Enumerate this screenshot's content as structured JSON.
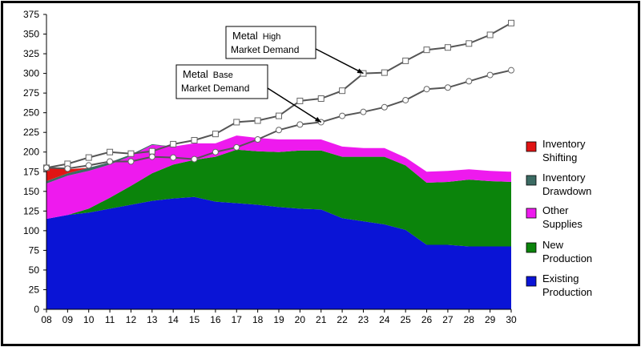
{
  "chart_data": {
    "type": "area",
    "x": [
      "08",
      "09",
      "10",
      "11",
      "12",
      "13",
      "14",
      "15",
      "16",
      "17",
      "18",
      "19",
      "20",
      "21",
      "22",
      "23",
      "24",
      "25",
      "26",
      "27",
      "28",
      "29",
      "30"
    ],
    "ylim": [
      0,
      375
    ],
    "yticks": [
      0,
      25,
      50,
      75,
      100,
      125,
      150,
      175,
      200,
      225,
      250,
      275,
      300,
      325,
      350,
      375
    ],
    "grid": false,
    "legend_position": "right",
    "stacked_series": [
      {
        "name": "Existing Production",
        "label_lines": [
          "Existing",
          "Production"
        ],
        "color": "#0a14d6",
        "values": [
          115,
          120,
          123,
          128,
          133,
          138,
          141,
          143,
          137,
          135,
          133,
          130,
          128,
          127,
          116,
          112,
          108,
          101,
          82,
          82,
          80,
          80,
          80
        ]
      },
      {
        "name": "New Production",
        "label_lines": [
          "New",
          "Production"
        ],
        "color": "#0b840b",
        "values": [
          0,
          0,
          5,
          14,
          24,
          35,
          43,
          47,
          57,
          68,
          68,
          70,
          74,
          75,
          78,
          82,
          86,
          82,
          79,
          80,
          85,
          83,
          82
        ]
      },
      {
        "name": "Other Supplies",
        "label_lines": [
          "Other",
          "Supplies"
        ],
        "color": "#ee1aee",
        "values": [
          45,
          50,
          48,
          42,
          38,
          36,
          23,
          21,
          17,
          18,
          17,
          16,
          14,
          14,
          13,
          11,
          11,
          10,
          14,
          14,
          13,
          13,
          13
        ]
      },
      {
        "name": "Inventory Drawdown",
        "label_lines": [
          "Inventory",
          "Drawdown"
        ],
        "color": "#3b6b63",
        "values": [
          3,
          3,
          4,
          3,
          2,
          1,
          0,
          0,
          0,
          0,
          0,
          0,
          0,
          0,
          0,
          0,
          0,
          0,
          0,
          0,
          0,
          0,
          0
        ]
      },
      {
        "name": "Inventory Shifting",
        "label_lines": [
          "Inventory",
          "Shifting"
        ],
        "color": "#e01414",
        "values": [
          17,
          5,
          0,
          0,
          0,
          0,
          0,
          0,
          0,
          0,
          0,
          0,
          0,
          0,
          0,
          0,
          0,
          0,
          0,
          0,
          0,
          0,
          0
        ]
      }
    ],
    "line_series": [
      {
        "name": "Metal High Market Demand",
        "marker": "square",
        "values": [
          180,
          185,
          193,
          200,
          198,
          201,
          210,
          215,
          223,
          238,
          240,
          246,
          265,
          268,
          278,
          300,
          301,
          316,
          330,
          333,
          338,
          349,
          364
        ]
      },
      {
        "name": "Metal Base Market Demand",
        "marker": "circle",
        "values": [
          180,
          179,
          183,
          188,
          188,
          194,
          193,
          191,
          200,
          206,
          216,
          228,
          235,
          238,
          246,
          251,
          257,
          266,
          280,
          282,
          290,
          298,
          304
        ]
      }
    ],
    "annotations": [
      {
        "series": "Metal High Market Demand",
        "line1_a": "Metal",
        "line1_b": "High",
        "line2": "Market Demand"
      },
      {
        "series": "Metal Base Market Demand",
        "line1_a": "Metal",
        "line1_b": "Base",
        "line2": "Market Demand"
      }
    ]
  }
}
